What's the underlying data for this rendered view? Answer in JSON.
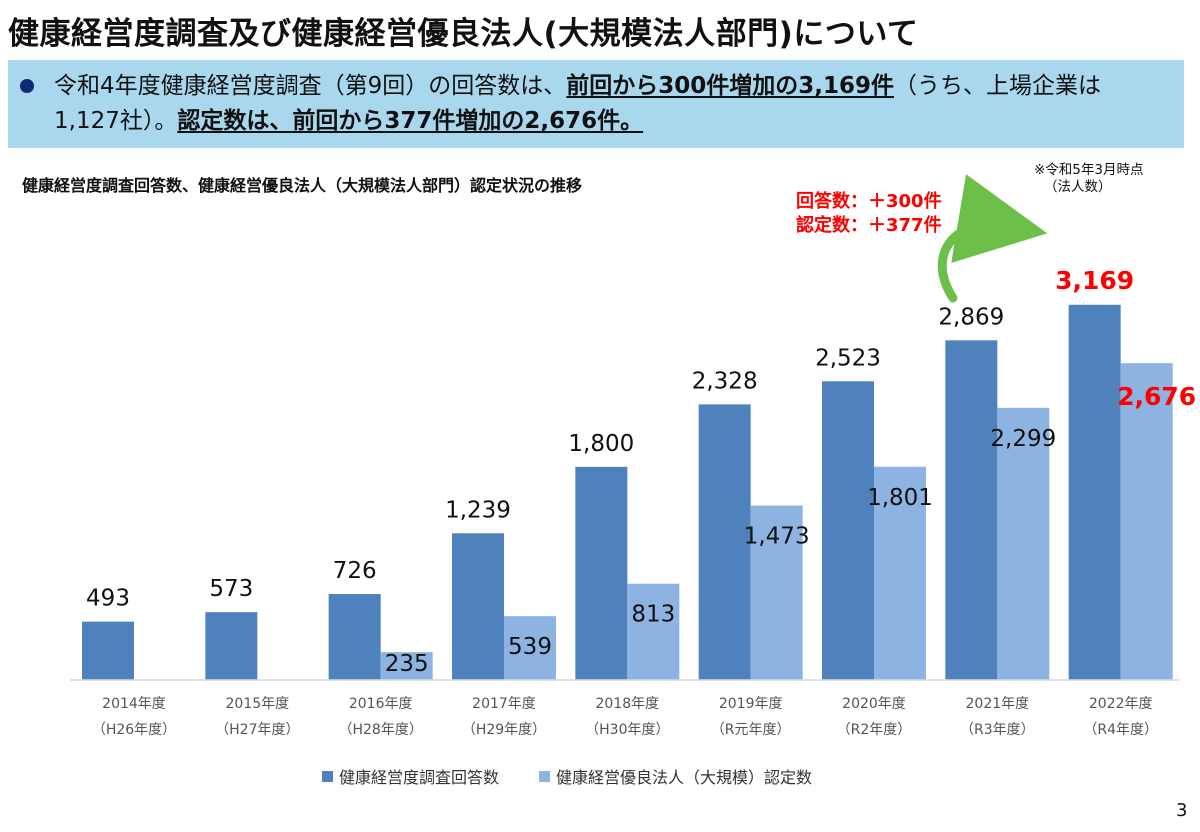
{
  "page": {
    "title": "健康経営度調査及び健康経営優良法人(大規模法人部門)について",
    "summary": {
      "s1": "令和4年度健康経営度調査（第9回）の回答数は、",
      "s2": "前回から300件増加の3,169件",
      "s3": "（うち、上場企業は1,127社）。",
      "s4": "認定数は、前回から377件増加の2,676件。"
    },
    "note_line1": "※令和5年3月時点",
    "note_line2": "（法人数）",
    "delta_line1": "回答数：＋300件",
    "delta_line2": "認定数：＋377件",
    "page_number": "3"
  },
  "colors": {
    "series_dark": "#4f81bd",
    "series_light": "#8db3e2",
    "highlight_red": "#ff0000",
    "summary_bg": "#a9d8ee"
  },
  "chart_data": {
    "type": "bar",
    "title": "健康経営度調査回答数、健康経営優良法人（大規模法人部門）認定状況の推移",
    "categories": [
      "2014年度",
      "2015年度",
      "2016年度",
      "2017年度",
      "2018年度",
      "2019年度",
      "2020年度",
      "2021年度",
      "2022年度"
    ],
    "categories_sub": [
      "（H26年度）",
      "（H27年度）",
      "（H28年度）",
      "（H29年度）",
      "（H30年度）",
      "（R元年度）",
      "（R2年度）",
      "（R3年度）",
      "（R4年度）"
    ],
    "series": [
      {
        "name": "健康経営度調査回答数",
        "values": [
          493,
          573,
          726,
          1239,
          1800,
          2328,
          2523,
          2869,
          3169
        ],
        "labels": [
          "493",
          "573",
          "726",
          "1,239",
          "1,800",
          "2,328",
          "2,523",
          "2,869",
          "3,169"
        ]
      },
      {
        "name": "健康経営優良法人（大規模）認定数",
        "values": [
          null,
          null,
          235,
          539,
          813,
          1473,
          1801,
          2299,
          2676
        ],
        "labels": [
          "",
          "",
          "235",
          "539",
          "813",
          "1,473",
          "1,801",
          "2,299",
          "2,676"
        ]
      }
    ],
    "ylim": [
      0,
      3500
    ],
    "grid": false,
    "legend_position": "bottom",
    "highlighted_category": "2022年度"
  }
}
